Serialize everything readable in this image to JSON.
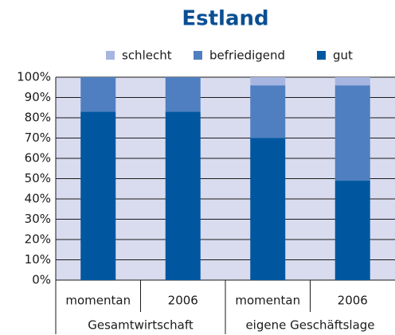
{
  "chart_data": {
    "type": "stacked_bar",
    "title": "Estland",
    "categories": [
      "momentan",
      "2006",
      "momentan",
      "2006"
    ],
    "groups": [
      "Gesamtwirtschaft",
      "eigene Geschäftslage"
    ],
    "series": [
      {
        "name": "gut",
        "color": "#0057a0",
        "values": [
          83,
          83,
          70,
          49
        ]
      },
      {
        "name": "befriedigend",
        "color": "#4f7fc0",
        "values": [
          17,
          17,
          26,
          47
        ]
      },
      {
        "name": "schlecht",
        "color": "#a6b6e0",
        "values": [
          0,
          0,
          4,
          4
        ]
      }
    ],
    "legend_order": [
      2,
      1,
      0
    ],
    "ylim": [
      0,
      100
    ],
    "yticks": [
      {
        "value": 0,
        "label": "0%"
      },
      {
        "value": 10,
        "label": "10%"
      },
      {
        "value": 20,
        "label": "20%"
      },
      {
        "value": 30,
        "label": "30%"
      },
      {
        "value": 40,
        "label": "40%"
      },
      {
        "value": 50,
        "label": "50%"
      },
      {
        "value": 60,
        "label": "60%"
      },
      {
        "value": 70,
        "label": "70%"
      },
      {
        "value": 80,
        "label": "80%"
      },
      {
        "value": 90,
        "label": "90%"
      },
      {
        "value": 100,
        "label": "100%"
      }
    ],
    "grid": true
  }
}
